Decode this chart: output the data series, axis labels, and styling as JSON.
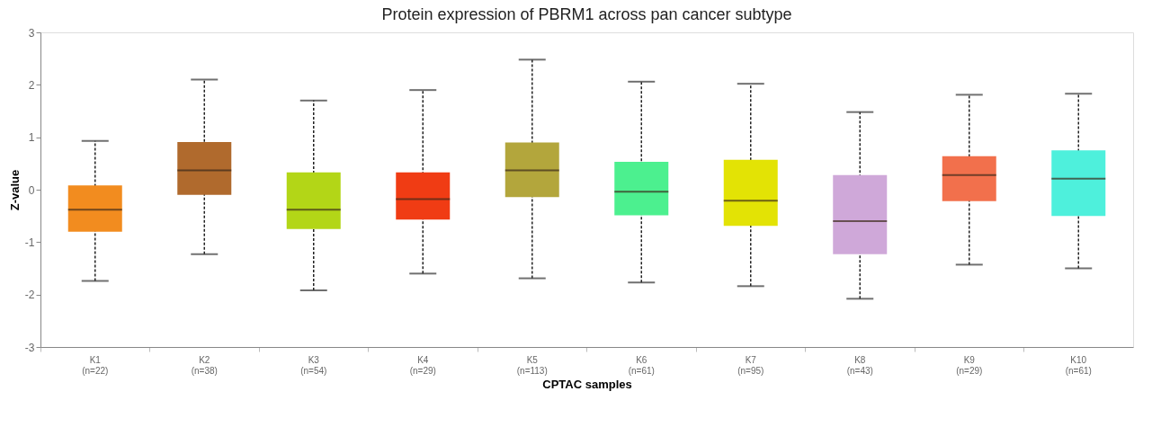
{
  "chart_data": {
    "type": "box",
    "title": "Protein expression of PBRM1 across pan cancer subtype",
    "xlabel": "CPTAC samples",
    "ylabel": "Z-value",
    "categories": [
      "K1\n(n=22)",
      "K2\n(n=38)",
      "K3\n(n=54)",
      "K4\n(n=29)",
      "K5\n(n=113)",
      "K6\n(n=61)",
      "K7\n(n=95)",
      "K8\n(n=43)",
      "K9\n(n=29)",
      "K10\n(n=61)"
    ],
    "colors": [
      "#f28c1f",
      "#b06a2d",
      "#b3d617",
      "#f03c14",
      "#b3a63c",
      "#4cf08f",
      "#e3e305",
      "#cfa8d9",
      "#f2704c",
      "#4ef0dc"
    ],
    "boxes": [
      {
        "low": -1.74,
        "q1": -0.8,
        "median": -0.38,
        "q3": 0.08,
        "high": 0.93
      },
      {
        "low": -1.23,
        "q1": -0.1,
        "median": 0.37,
        "q3": 0.91,
        "high": 2.1
      },
      {
        "low": -1.92,
        "q1": -0.75,
        "median": -0.38,
        "q3": 0.33,
        "high": 1.7
      },
      {
        "low": -1.6,
        "q1": -0.57,
        "median": -0.18,
        "q3": 0.33,
        "high": 1.9
      },
      {
        "low": -1.69,
        "q1": -0.14,
        "median": 0.37,
        "q3": 0.9,
        "high": 2.48
      },
      {
        "low": -1.77,
        "q1": -0.49,
        "median": -0.04,
        "q3": 0.53,
        "high": 2.06
      },
      {
        "low": -1.84,
        "q1": -0.69,
        "median": -0.21,
        "q3": 0.57,
        "high": 2.02
      },
      {
        "low": -2.08,
        "q1": -1.23,
        "median": -0.6,
        "q3": 0.28,
        "high": 1.48
      },
      {
        "low": -1.43,
        "q1": -0.22,
        "median": 0.28,
        "q3": 0.64,
        "high": 1.81
      },
      {
        "low": -1.5,
        "q1": -0.5,
        "median": 0.21,
        "q3": 0.75,
        "high": 1.83
      }
    ],
    "ylim": [
      -3,
      3
    ],
    "yticks": [
      -3,
      -2,
      -1,
      0,
      1,
      2,
      3
    ],
    "grid": false,
    "legend": false
  }
}
